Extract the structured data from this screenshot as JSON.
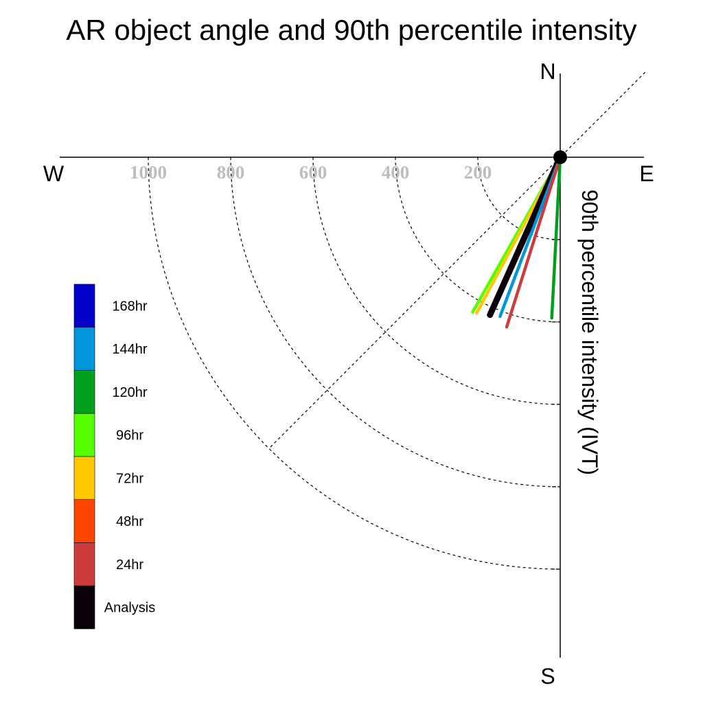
{
  "chart_data": {
    "type": "polar-vector",
    "title": "AR object angle and 90th percentile intensity",
    "ylabel": "90th percentile intensity (IVT)",
    "compass": {
      "north": "N",
      "south": "S",
      "east": "E",
      "west": "W"
    },
    "radial_ticks": [
      "1000",
      "800",
      "600",
      "400",
      "200"
    ],
    "radial_tick_values": [
      1000,
      800,
      600,
      400,
      200
    ],
    "rmax": 1200,
    "reference_angle_deg": 45,
    "grid": true,
    "legend": {
      "placement": "left",
      "entries": [
        {
          "label": "168hr",
          "color": "#0000c8"
        },
        {
          "label": "144hr",
          "color": "#0096dc"
        },
        {
          "label": "120hr",
          "color": "#00a01e"
        },
        {
          "label": "96hr",
          "color": "#55ff00"
        },
        {
          "label": "72hr",
          "color": "#ffc800"
        },
        {
          "label": "48hr",
          "color": "#ff4600"
        },
        {
          "label": "24hr",
          "color": "#cd3c3c"
        },
        {
          "label": "Analysis",
          "color": "#0a000a"
        }
      ]
    },
    "series": [
      {
        "name": "96hr",
        "color": "#55ff00",
        "angle_deg": 209.5,
        "intensity": 432
      },
      {
        "name": "72hr",
        "color": "#ffc800",
        "angle_deg": 208.2,
        "intensity": 429
      },
      {
        "name": "Analysis",
        "color": "#0a000a",
        "angle_deg": 204.0,
        "intensity": 419
      },
      {
        "name": "144hr",
        "color": "#0096dc",
        "angle_deg": 200.7,
        "intensity": 413
      },
      {
        "name": "24hr",
        "color": "#cd3c3c",
        "angle_deg": 197.5,
        "intensity": 432
      },
      {
        "name": "120hr",
        "color": "#00a01e",
        "angle_deg": 183.0,
        "intensity": 391
      }
    ]
  }
}
